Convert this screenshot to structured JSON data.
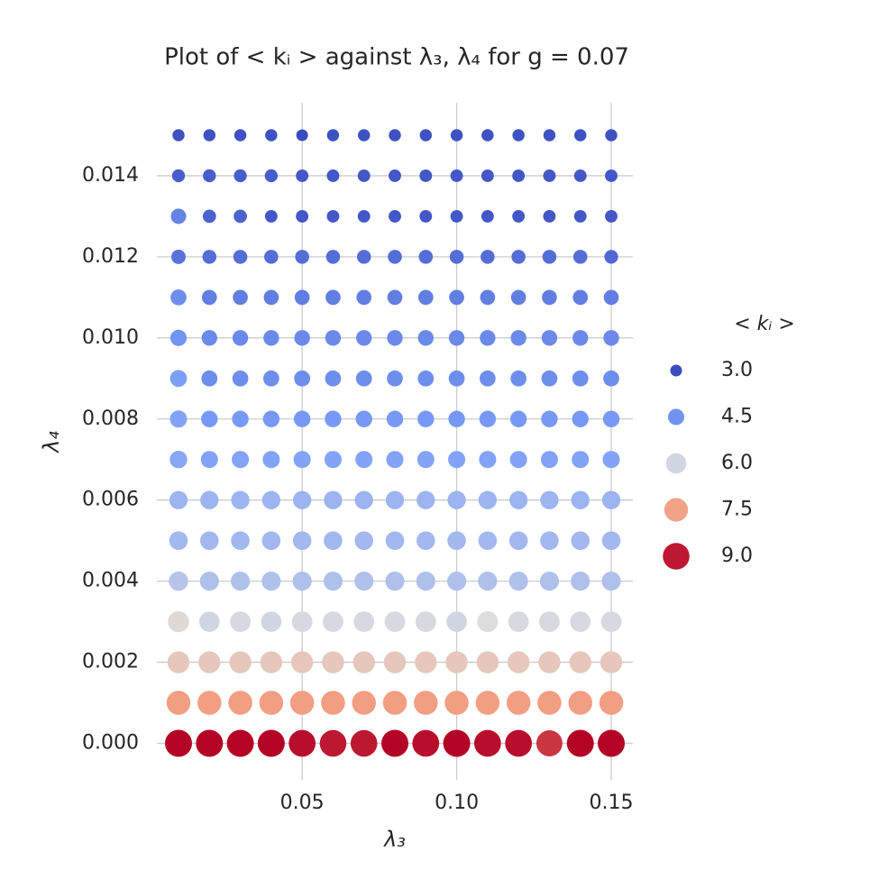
{
  "chart_data": {
    "type": "scatter",
    "title": "Plot of < kᵢ > against λ₃, λ₄ for g = 0.07",
    "x_label": "λ₃",
    "y_label": "λ₄",
    "x": [
      0.01,
      0.02,
      0.03,
      0.04,
      0.05,
      0.06,
      0.07,
      0.08,
      0.09,
      0.1,
      0.11,
      0.12,
      0.13,
      0.14,
      0.15
    ],
    "y": [
      0,
      0.001,
      0.002,
      0.003,
      0.004,
      0.005,
      0.006,
      0.007,
      0.008,
      0.009,
      0.01,
      0.011,
      0.012,
      0.013,
      0.014,
      0.015
    ],
    "values": [
      [
        9.2,
        9.2,
        9.2,
        9.2,
        9.1,
        9.0,
        9.0,
        9.2,
        9.1,
        9.2,
        9.1,
        9.1,
        8.7,
        9.2,
        9.2
      ],
      [
        7.6,
        7.6,
        7.6,
        7.6,
        7.6,
        7.6,
        7.6,
        7.6,
        7.6,
        7.6,
        7.6,
        7.6,
        7.6,
        7.6,
        7.6
      ],
      [
        6.7,
        6.7,
        6.7,
        6.7,
        6.7,
        6.7,
        6.7,
        6.7,
        6.7,
        6.7,
        6.7,
        6.7,
        6.7,
        6.7,
        6.7
      ],
      [
        6.3,
        6.0,
        6.1,
        6.0,
        6.1,
        6.1,
        6.1,
        6.1,
        6.1,
        6.0,
        6.2,
        6.1,
        6.1,
        6.1,
        6.1
      ],
      [
        5.6,
        5.5,
        5.5,
        5.5,
        5.5,
        5.5,
        5.5,
        5.5,
        5.5,
        5.5,
        5.5,
        5.5,
        5.5,
        5.5,
        5.5
      ],
      [
        5.3,
        5.3,
        5.3,
        5.3,
        5.3,
        5.3,
        5.3,
        5.3,
        5.3,
        5.3,
        5.3,
        5.3,
        5.3,
        5.3,
        5.3
      ],
      [
        5.2,
        5.2,
        5.2,
        5.2,
        5.2,
        5.2,
        5.2,
        5.2,
        5.2,
        5.2,
        5.2,
        5.2,
        5.2,
        5.2,
        5.2
      ],
      [
        4.9,
        4.8,
        4.8,
        4.8,
        4.8,
        4.8,
        4.8,
        4.8,
        4.8,
        4.8,
        4.8,
        4.8,
        4.8,
        4.8,
        4.8
      ],
      [
        4.8,
        4.6,
        4.6,
        4.6,
        4.6,
        4.6,
        4.6,
        4.6,
        4.6,
        4.6,
        4.6,
        4.6,
        4.6,
        4.6,
        4.6
      ],
      [
        4.7,
        4.4,
        4.4,
        4.4,
        4.4,
        4.4,
        4.4,
        4.4,
        4.4,
        4.4,
        4.4,
        4.4,
        4.4,
        4.4,
        4.4
      ],
      [
        4.5,
        4.3,
        4.3,
        4.3,
        4.3,
        4.3,
        4.3,
        4.3,
        4.3,
        4.3,
        4.3,
        4.3,
        4.3,
        4.3,
        4.3
      ],
      [
        4.4,
        4.1,
        4.1,
        4.1,
        4.1,
        4.1,
        4.1,
        4.1,
        4.1,
        4.1,
        4.1,
        4.1,
        4.1,
        4.1,
        4.1
      ],
      [
        3.9,
        3.8,
        3.8,
        3.8,
        3.8,
        3.8,
        3.8,
        3.8,
        3.8,
        3.8,
        3.8,
        3.8,
        3.8,
        3.8,
        3.7
      ],
      [
        4.2,
        3.6,
        3.6,
        3.4,
        3.4,
        3.4,
        3.4,
        3.4,
        3.4,
        3.4,
        3.4,
        3.4,
        3.4,
        3.4,
        3.4
      ],
      [
        3.5,
        3.5,
        3.5,
        3.5,
        3.4,
        3.4,
        3.4,
        3.4,
        3.4,
        3.4,
        3.4,
        3.4,
        3.4,
        3.4,
        3.4
      ],
      [
        3.3,
        3.3,
        3.3,
        3.3,
        3.2,
        3.3,
        3.3,
        3.3,
        3.3,
        3.3,
        3.3,
        3.3,
        3.3,
        3.3,
        3.3
      ]
    ],
    "colormap": [
      "#3b4cc0",
      "#7b9ff9",
      "#dddddd",
      "#f49a7b",
      "#b40426"
    ],
    "xlim": [
      0.003,
      0.157
    ],
    "ylim": [
      -0.0009,
      0.0158
    ],
    "xticks": [
      0.05,
      {
        "value": 0.1,
        "label": "0.10"
      },
      0.15
    ],
    "yticks": [
      {
        "value": 0,
        "label": "0.000"
      },
      0.002,
      0.004,
      0.006,
      0.008,
      {
        "value": 0.01,
        "label": "0.010"
      },
      0.012,
      0.014
    ],
    "grid": true,
    "legend": {
      "title": "< kᵢ >",
      "position": "right",
      "entries": [
        {
          "value": 3,
          "label": "3.0"
        },
        4.5,
        {
          "value": 6,
          "label": "6.0"
        },
        7.5,
        {
          "value": 9,
          "label": "9.0"
        }
      ]
    }
  }
}
